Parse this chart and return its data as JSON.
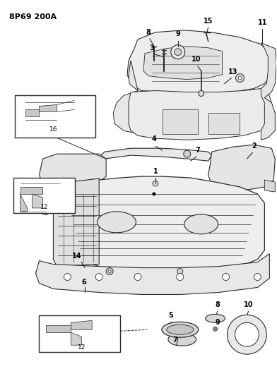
{
  "title_code": "8P69 200A",
  "bg_color": "#ffffff",
  "line_color": "#2a2a2a",
  "fig_width": 3.92,
  "fig_height": 5.33,
  "dpi": 100
}
